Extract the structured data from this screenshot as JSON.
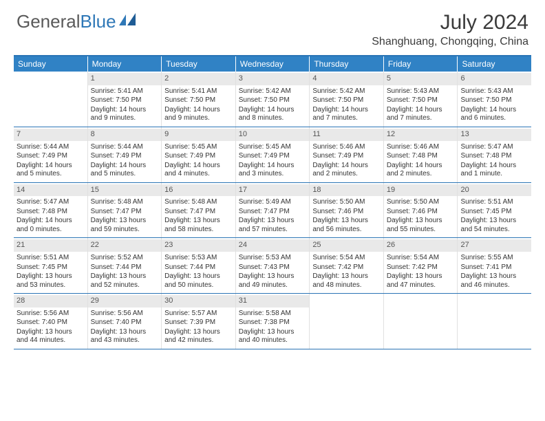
{
  "logo": {
    "word1": "General",
    "word2": "Blue"
  },
  "title": "July 2024",
  "location": "Shanghuang, Chongqing, China",
  "colors": {
    "header_blue": "#3082c5",
    "rule_blue": "#2a74b5",
    "daynum_bg": "#e9e9e9",
    "text": "#333333",
    "logo_gray": "#5a5a5a",
    "logo_blue": "#2f78b7"
  },
  "day_headers": [
    "Sunday",
    "Monday",
    "Tuesday",
    "Wednesday",
    "Thursday",
    "Friday",
    "Saturday"
  ],
  "weeks": [
    [
      {
        "n": "",
        "sr": "",
        "ss": "",
        "dl": ""
      },
      {
        "n": "1",
        "sr": "Sunrise: 5:41 AM",
        "ss": "Sunset: 7:50 PM",
        "dl": "Daylight: 14 hours and 9 minutes."
      },
      {
        "n": "2",
        "sr": "Sunrise: 5:41 AM",
        "ss": "Sunset: 7:50 PM",
        "dl": "Daylight: 14 hours and 9 minutes."
      },
      {
        "n": "3",
        "sr": "Sunrise: 5:42 AM",
        "ss": "Sunset: 7:50 PM",
        "dl": "Daylight: 14 hours and 8 minutes."
      },
      {
        "n": "4",
        "sr": "Sunrise: 5:42 AM",
        "ss": "Sunset: 7:50 PM",
        "dl": "Daylight: 14 hours and 7 minutes."
      },
      {
        "n": "5",
        "sr": "Sunrise: 5:43 AM",
        "ss": "Sunset: 7:50 PM",
        "dl": "Daylight: 14 hours and 7 minutes."
      },
      {
        "n": "6",
        "sr": "Sunrise: 5:43 AM",
        "ss": "Sunset: 7:50 PM",
        "dl": "Daylight: 14 hours and 6 minutes."
      }
    ],
    [
      {
        "n": "7",
        "sr": "Sunrise: 5:44 AM",
        "ss": "Sunset: 7:49 PM",
        "dl": "Daylight: 14 hours and 5 minutes."
      },
      {
        "n": "8",
        "sr": "Sunrise: 5:44 AM",
        "ss": "Sunset: 7:49 PM",
        "dl": "Daylight: 14 hours and 5 minutes."
      },
      {
        "n": "9",
        "sr": "Sunrise: 5:45 AM",
        "ss": "Sunset: 7:49 PM",
        "dl": "Daylight: 14 hours and 4 minutes."
      },
      {
        "n": "10",
        "sr": "Sunrise: 5:45 AM",
        "ss": "Sunset: 7:49 PM",
        "dl": "Daylight: 14 hours and 3 minutes."
      },
      {
        "n": "11",
        "sr": "Sunrise: 5:46 AM",
        "ss": "Sunset: 7:49 PM",
        "dl": "Daylight: 14 hours and 2 minutes."
      },
      {
        "n": "12",
        "sr": "Sunrise: 5:46 AM",
        "ss": "Sunset: 7:48 PM",
        "dl": "Daylight: 14 hours and 2 minutes."
      },
      {
        "n": "13",
        "sr": "Sunrise: 5:47 AM",
        "ss": "Sunset: 7:48 PM",
        "dl": "Daylight: 14 hours and 1 minute."
      }
    ],
    [
      {
        "n": "14",
        "sr": "Sunrise: 5:47 AM",
        "ss": "Sunset: 7:48 PM",
        "dl": "Daylight: 14 hours and 0 minutes."
      },
      {
        "n": "15",
        "sr": "Sunrise: 5:48 AM",
        "ss": "Sunset: 7:47 PM",
        "dl": "Daylight: 13 hours and 59 minutes."
      },
      {
        "n": "16",
        "sr": "Sunrise: 5:48 AM",
        "ss": "Sunset: 7:47 PM",
        "dl": "Daylight: 13 hours and 58 minutes."
      },
      {
        "n": "17",
        "sr": "Sunrise: 5:49 AM",
        "ss": "Sunset: 7:47 PM",
        "dl": "Daylight: 13 hours and 57 minutes."
      },
      {
        "n": "18",
        "sr": "Sunrise: 5:50 AM",
        "ss": "Sunset: 7:46 PM",
        "dl": "Daylight: 13 hours and 56 minutes."
      },
      {
        "n": "19",
        "sr": "Sunrise: 5:50 AM",
        "ss": "Sunset: 7:46 PM",
        "dl": "Daylight: 13 hours and 55 minutes."
      },
      {
        "n": "20",
        "sr": "Sunrise: 5:51 AM",
        "ss": "Sunset: 7:45 PM",
        "dl": "Daylight: 13 hours and 54 minutes."
      }
    ],
    [
      {
        "n": "21",
        "sr": "Sunrise: 5:51 AM",
        "ss": "Sunset: 7:45 PM",
        "dl": "Daylight: 13 hours and 53 minutes."
      },
      {
        "n": "22",
        "sr": "Sunrise: 5:52 AM",
        "ss": "Sunset: 7:44 PM",
        "dl": "Daylight: 13 hours and 52 minutes."
      },
      {
        "n": "23",
        "sr": "Sunrise: 5:53 AM",
        "ss": "Sunset: 7:44 PM",
        "dl": "Daylight: 13 hours and 50 minutes."
      },
      {
        "n": "24",
        "sr": "Sunrise: 5:53 AM",
        "ss": "Sunset: 7:43 PM",
        "dl": "Daylight: 13 hours and 49 minutes."
      },
      {
        "n": "25",
        "sr": "Sunrise: 5:54 AM",
        "ss": "Sunset: 7:42 PM",
        "dl": "Daylight: 13 hours and 48 minutes."
      },
      {
        "n": "26",
        "sr": "Sunrise: 5:54 AM",
        "ss": "Sunset: 7:42 PM",
        "dl": "Daylight: 13 hours and 47 minutes."
      },
      {
        "n": "27",
        "sr": "Sunrise: 5:55 AM",
        "ss": "Sunset: 7:41 PM",
        "dl": "Daylight: 13 hours and 46 minutes."
      }
    ],
    [
      {
        "n": "28",
        "sr": "Sunrise: 5:56 AM",
        "ss": "Sunset: 7:40 PM",
        "dl": "Daylight: 13 hours and 44 minutes."
      },
      {
        "n": "29",
        "sr": "Sunrise: 5:56 AM",
        "ss": "Sunset: 7:40 PM",
        "dl": "Daylight: 13 hours and 43 minutes."
      },
      {
        "n": "30",
        "sr": "Sunrise: 5:57 AM",
        "ss": "Sunset: 7:39 PM",
        "dl": "Daylight: 13 hours and 42 minutes."
      },
      {
        "n": "31",
        "sr": "Sunrise: 5:58 AM",
        "ss": "Sunset: 7:38 PM",
        "dl": "Daylight: 13 hours and 40 minutes."
      },
      {
        "n": "",
        "sr": "",
        "ss": "",
        "dl": ""
      },
      {
        "n": "",
        "sr": "",
        "ss": "",
        "dl": ""
      },
      {
        "n": "",
        "sr": "",
        "ss": "",
        "dl": ""
      }
    ]
  ]
}
